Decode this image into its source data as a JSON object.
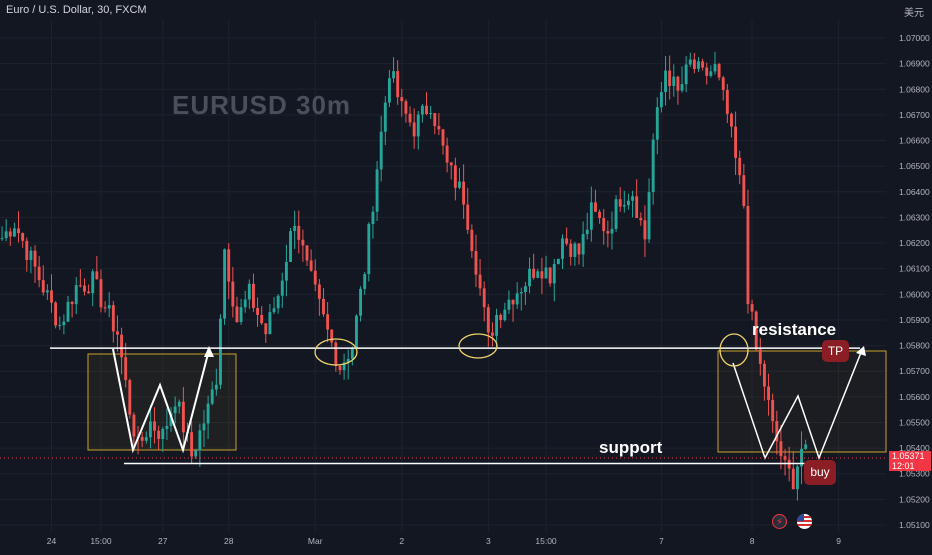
{
  "header": {
    "symbol_title": "Euro / U.S. Dollar, 30, FXCM",
    "currency_label": "美元"
  },
  "watermark": "EURUSD  30m",
  "annotations": {
    "resistance_label": "resistance",
    "support_label": "support",
    "tp_label": "TP",
    "buy_label": "buy"
  },
  "price_tag": {
    "price": "1.05371",
    "countdown": "12:01"
  },
  "bottom_icons": [
    "lightning-icon",
    "us-flag-icon"
  ],
  "colors": {
    "background": "#131722",
    "bullish": "#26a69a",
    "bearish": "#ef5350",
    "zone": "#c9a227",
    "badge": "#8b1e24",
    "price_tag": "#f23645"
  },
  "chart_data": {
    "type": "candlestick",
    "y_ticks": [
      "1.07000",
      "1.06900",
      "1.06800",
      "1.06700",
      "1.06600",
      "1.06500",
      "1.06400",
      "1.06300",
      "1.06200",
      "1.06100",
      "1.06000",
      "1.05900",
      "1.05800",
      "1.05700",
      "1.05600",
      "1.05500",
      "1.05400",
      "1.05300",
      "1.05200",
      "1.05100"
    ],
    "ylim": [
      1.0506,
      1.0715
    ],
    "x_ticks": [
      {
        "label": "24",
        "bar": 12
      },
      {
        "label": "15:00",
        "bar": 24
      },
      {
        "label": "27",
        "bar": 39
      },
      {
        "label": "28",
        "bar": 55
      },
      {
        "label": "Mar",
        "bar": 76
      },
      {
        "label": "2",
        "bar": 97
      },
      {
        "label": "3",
        "bar": 118
      },
      {
        "label": "15:00",
        "bar": 132
      },
      {
        "label": "7",
        "bar": 160
      },
      {
        "label": "8",
        "bar": 182
      },
      {
        "label": "9",
        "bar": 203
      }
    ],
    "bar_count": 215,
    "waypoints": [
      [
        0,
        1.0622
      ],
      [
        3,
        1.0628
      ],
      [
        8,
        1.061
      ],
      [
        14,
        1.0588
      ],
      [
        18,
        1.0603
      ],
      [
        22,
        1.0605
      ],
      [
        28,
        1.0585
      ],
      [
        31,
        1.0555
      ],
      [
        33,
        1.054
      ],
      [
        36,
        1.055
      ],
      [
        39,
        1.0545
      ],
      [
        42,
        1.056
      ],
      [
        46,
        1.0537
      ],
      [
        50,
        1.0555
      ],
      [
        52,
        1.0568
      ],
      [
        54,
        1.0618
      ],
      [
        57,
        1.059
      ],
      [
        60,
        1.06
      ],
      [
        64,
        1.0585
      ],
      [
        67,
        1.06
      ],
      [
        71,
        1.063
      ],
      [
        74,
        1.061
      ],
      [
        79,
        1.0585
      ],
      [
        82,
        1.0572
      ],
      [
        85,
        1.058
      ],
      [
        88,
        1.061
      ],
      [
        91,
        1.065
      ],
      [
        94,
        1.0688
      ],
      [
        97,
        1.0672
      ],
      [
        100,
        1.0665
      ],
      [
        104,
        1.0675
      ],
      [
        108,
        1.065
      ],
      [
        112,
        1.0638
      ],
      [
        115,
        1.0612
      ],
      [
        118,
        1.0582
      ],
      [
        120,
        1.0592
      ],
      [
        124,
        1.06
      ],
      [
        127,
        1.0605
      ],
      [
        130,
        1.0612
      ],
      [
        133,
        1.0608
      ],
      [
        136,
        1.0622
      ],
      [
        140,
        1.0616
      ],
      [
        143,
        1.0632
      ],
      [
        147,
        1.0625
      ],
      [
        150,
        1.0638
      ],
      [
        153,
        1.064
      ],
      [
        156,
        1.0622
      ],
      [
        158,
        1.066
      ],
      [
        161,
        1.0688
      ],
      [
        164,
        1.0678
      ],
      [
        167,
        1.069
      ],
      [
        170,
        1.0685
      ],
      [
        173,
        1.0688
      ],
      [
        176,
        1.067
      ],
      [
        178,
        1.0652
      ],
      [
        180,
        1.0635
      ],
      [
        181,
        1.06
      ],
      [
        183,
        1.0578
      ],
      [
        185,
        1.0565
      ],
      [
        187,
        1.0548
      ],
      [
        190,
        1.0532
      ],
      [
        192,
        1.0528
      ],
      [
        194,
        1.054
      ],
      [
        195,
        1.0537
      ]
    ],
    "levels": {
      "resistance": 1.0579,
      "support": 1.0534
    }
  }
}
